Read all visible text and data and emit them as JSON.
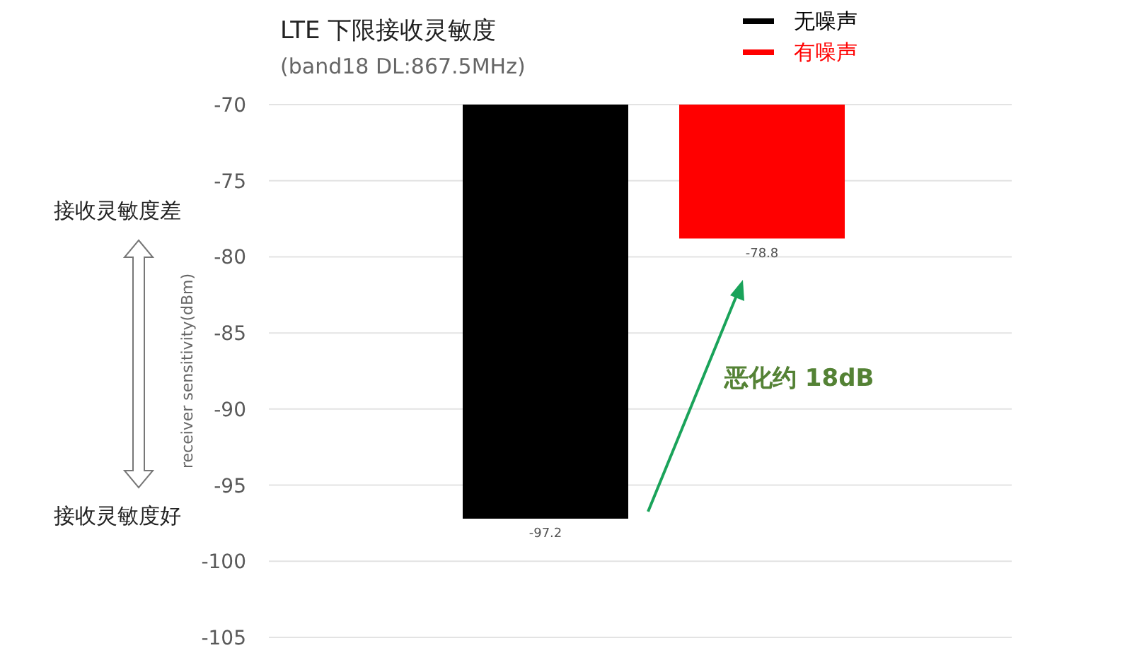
{
  "chart_data": {
    "type": "bar",
    "title": "LTE 下限接收灵敏度",
    "subtitle": "(band18 DL:867.5MHz)",
    "ylabel": "receiver sensitivity(dBm)",
    "categories": [
      null,
      null
    ],
    "series": [
      {
        "name": "无噪声",
        "color": "#000000",
        "values": [
          -97.2,
          null
        ]
      },
      {
        "name": "有噪声",
        "color": "#ff0000",
        "values": [
          null,
          -78.8
        ]
      }
    ],
    "ylim": [
      -105,
      -70
    ],
    "yticks": [
      -105,
      -100,
      -95,
      -90,
      -85,
      -80,
      -75,
      -70
    ],
    "grid": "y",
    "legend": "top right",
    "data_labels": true,
    "annotations": [
      "接收灵敏度差",
      "接收灵敏度好",
      "恶化约 18dB"
    ]
  }
}
